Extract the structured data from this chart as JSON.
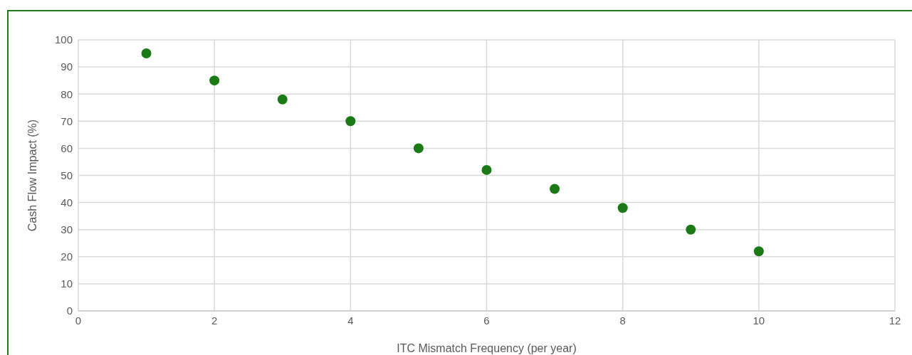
{
  "chart_data": {
    "type": "scatter",
    "xlabel": "ITC Mismatch Frequency (per year)",
    "ylabel": "Cash Flow Impact (%)",
    "x": [
      1,
      2,
      3,
      4,
      5,
      6,
      7,
      8,
      9,
      10
    ],
    "series": [
      {
        "color": "#1b7a16",
        "values": [
          95,
          85,
          78,
          70,
          60,
          52,
          45,
          38,
          30,
          22
        ]
      }
    ],
    "xlim": [
      0,
      12
    ],
    "xticks": [
      0,
      2,
      4,
      6,
      8,
      10,
      12
    ],
    "ylim": [
      0,
      100
    ],
    "yticks": [
      0,
      10,
      20,
      30,
      40,
      50,
      60,
      70,
      80,
      90,
      100
    ],
    "grid": true,
    "marker": "circle"
  }
}
